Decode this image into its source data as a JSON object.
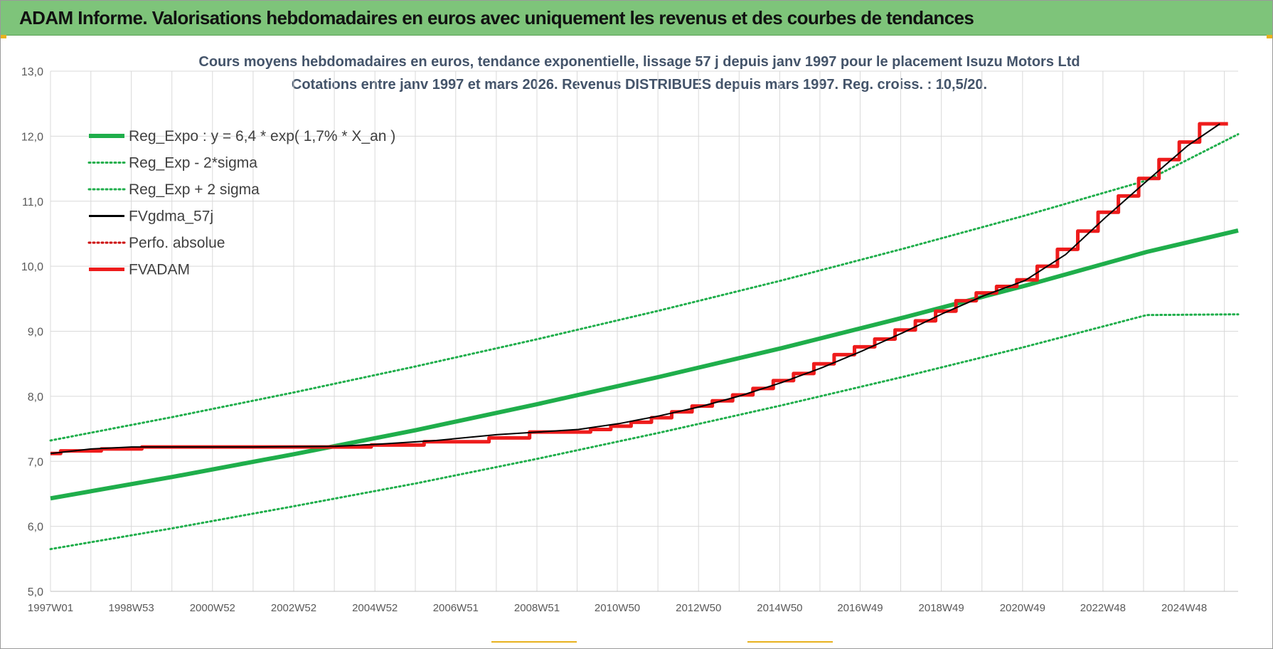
{
  "banner": {
    "title": "ADAM Informe. Valorisations hebdomadaires en euros avec uniquement les revenus et des courbes de tendances"
  },
  "colors": {
    "banner_bg": "#7ec47a",
    "reg_green": "#1fae4b",
    "fvadam_red": "#ee1c1c",
    "fvgdma_black": "#000000",
    "perfo_red": "#cc0000"
  },
  "chart_data": {
    "type": "line",
    "title": "Cours moyens hebdomadaires en euros, tendance exponentielle, lissage 57 j depuis janv 1997 pour le placement Isuzu Motors Ltd",
    "subtitle": "Cotations entre janv 1997 et mars 2026. Revenus DISTRIBUES depuis mars 1997. Reg. croiss. : 10,5/20.",
    "xlabel": "",
    "ylabel": "",
    "ylim": [
      5.0,
      13.0
    ],
    "xlim": [
      1997.0,
      2026.25
    ],
    "y_ticks": [
      "5,0",
      "6,0",
      "7,0",
      "8,0",
      "9,0",
      "10,0",
      "11,0",
      "12,0",
      "13,0"
    ],
    "x_ticks": [
      {
        "label": "1997W01",
        "x": 1997.0
      },
      {
        "label": "1998W53",
        "x": 1998.99
      },
      {
        "label": "2000W52",
        "x": 2000.99
      },
      {
        "label": "2002W52",
        "x": 2002.99
      },
      {
        "label": "2004W52",
        "x": 2004.99
      },
      {
        "label": "2006W51",
        "x": 2006.98
      },
      {
        "label": "2008W51",
        "x": 2008.98
      },
      {
        "label": "2010W50",
        "x": 2010.96
      },
      {
        "label": "2012W50",
        "x": 2012.96
      },
      {
        "label": "2014W50",
        "x": 2014.96
      },
      {
        "label": "2016W49",
        "x": 2016.94
      },
      {
        "label": "2018W49",
        "x": 2018.94
      },
      {
        "label": "2020W49",
        "x": 2020.94
      },
      {
        "label": "2022W48",
        "x": 2022.92
      },
      {
        "label": "2024W48",
        "x": 2024.92
      }
    ],
    "grid": true,
    "legend_position": "top-left",
    "series": [
      {
        "name": "Reg_Expo : y = 6,4 * exp( 1,7% *  X_an )",
        "style": "solid-thick",
        "color": "#1fae4b",
        "x": [
          1997.0,
          2000.0,
          2003.0,
          2006.0,
          2009.0,
          2012.0,
          2015.0,
          2018.0,
          2021.0,
          2024.0,
          2026.25
        ],
        "y": [
          6.43,
          6.76,
          7.11,
          7.48,
          7.88,
          8.3,
          8.74,
          9.21,
          9.7,
          10.22,
          10.55
        ]
      },
      {
        "name": "Reg_Exp - 2*sigma",
        "style": "dotted",
        "color": "#1fae4b",
        "x": [
          1997.0,
          2000.0,
          2003.0,
          2006.0,
          2009.0,
          2012.0,
          2015.0,
          2018.0,
          2021.0,
          2024.0,
          2026.25
        ],
        "y": [
          5.65,
          5.97,
          6.31,
          6.66,
          7.04,
          7.44,
          7.86,
          8.3,
          8.76,
          9.25,
          9.26
        ]
      },
      {
        "name": "Reg_Exp + 2 sigma",
        "style": "dotted",
        "color": "#1fae4b",
        "x": [
          1997.0,
          2000.0,
          2003.0,
          2006.0,
          2009.0,
          2012.0,
          2015.0,
          2018.0,
          2021.0,
          2024.0,
          2026.25
        ],
        "y": [
          7.32,
          7.68,
          8.06,
          8.46,
          8.88,
          9.32,
          9.78,
          10.27,
          10.78,
          11.32,
          12.03
        ]
      },
      {
        "name": "FVgdma_57j",
        "style": "solid-thin",
        "color": "#000000",
        "x": [
          1997.0,
          1998.0,
          1999.0,
          2002.0,
          2004.0,
          2005.0,
          2006.5,
          2008.0,
          2010.0,
          2011.0,
          2012.0,
          2013.0,
          2014.0,
          2015.0,
          2016.0,
          2017.0,
          2018.0,
          2019.0,
          2020.0,
          2021.0,
          2022.0,
          2023.0,
          2024.0,
          2025.0,
          2025.8
        ],
        "y": [
          7.12,
          7.19,
          7.22,
          7.22,
          7.23,
          7.26,
          7.32,
          7.41,
          7.49,
          7.58,
          7.7,
          7.84,
          8.01,
          8.21,
          8.44,
          8.7,
          8.98,
          9.28,
          9.55,
          9.78,
          10.18,
          10.76,
          11.31,
          11.85,
          12.19
        ]
      },
      {
        "name": "Perfo. absolue",
        "style": "dotted",
        "color": "#cc0000",
        "x": [],
        "y": []
      },
      {
        "name": "FVADAM",
        "style": "step-thick",
        "color": "#ee1c1c",
        "x": [
          1997.0,
          1997.25,
          1998.25,
          1999.25,
          2004.9,
          2006.2,
          2007.8,
          2008.8,
          2010.3,
          2010.8,
          2011.3,
          2011.8,
          2012.3,
          2012.8,
          2013.3,
          2013.8,
          2014.3,
          2014.8,
          2015.3,
          2015.8,
          2016.3,
          2016.8,
          2017.3,
          2017.8,
          2018.3,
          2018.8,
          2019.3,
          2019.8,
          2020.3,
          2020.8,
          2021.3,
          2021.8,
          2022.3,
          2022.8,
          2023.3,
          2023.8,
          2024.3,
          2024.8,
          2025.3,
          2025.8,
          2026.0
        ],
        "y": [
          7.12,
          7.16,
          7.19,
          7.22,
          7.25,
          7.3,
          7.36,
          7.45,
          7.49,
          7.54,
          7.6,
          7.67,
          7.76,
          7.85,
          7.93,
          8.02,
          8.12,
          8.24,
          8.35,
          8.5,
          8.64,
          8.76,
          8.88,
          9.02,
          9.16,
          9.31,
          9.47,
          9.59,
          9.69,
          9.79,
          10.0,
          10.26,
          10.54,
          10.83,
          11.08,
          11.35,
          11.64,
          11.91,
          12.19,
          12.19,
          12.19
        ]
      }
    ]
  }
}
